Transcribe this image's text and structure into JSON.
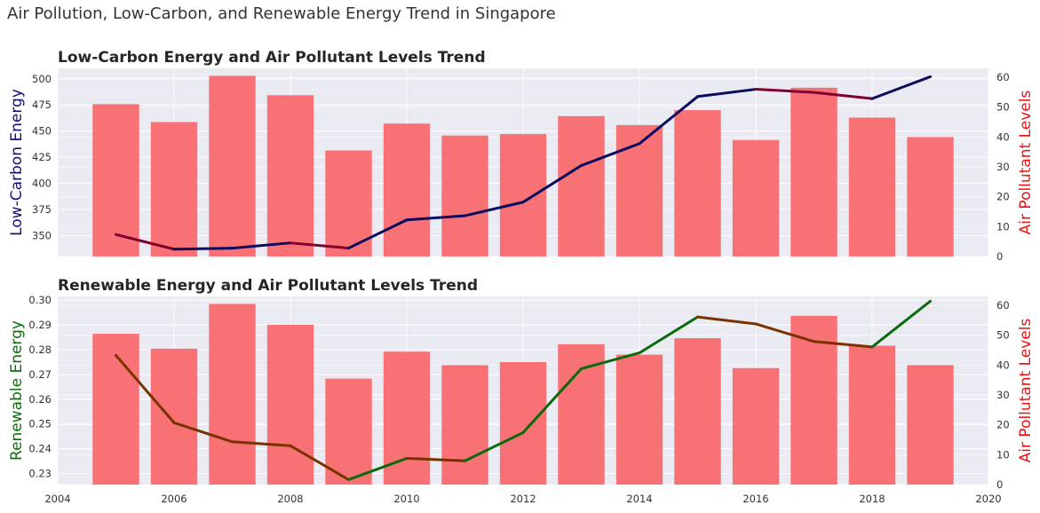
{
  "figure": {
    "title": "Air Pollution, Low-Carbon, and Renewable Energy Trend in Singapore",
    "colors": {
      "background": "#eaeaf2",
      "grid": "#ffffff",
      "bars": "#f87175",
      "right_axis_label": "#ee1111"
    }
  },
  "chart_data": [
    {
      "type": "bar+line",
      "title": "Low-Carbon Energy and Air Pollutant Levels Trend",
      "ylabel": "Low-Carbon Energy",
      "ylabel_color": "#101078",
      "y2label": "Air Pollutant Levels",
      "xlim": [
        2004,
        2020
      ],
      "ylim": [
        330,
        510
      ],
      "y2lim": [
        0,
        63
      ],
      "yticks": [
        350,
        375,
        400,
        425,
        450,
        475,
        500
      ],
      "y2ticks": [
        0,
        10,
        20,
        30,
        40,
        50,
        60
      ],
      "grid": true,
      "x": [
        2005,
        2006,
        2007,
        2008,
        2009,
        2010,
        2011,
        2012,
        2013,
        2014,
        2015,
        2016,
        2017,
        2018,
        2019
      ],
      "line_series": {
        "values": [
          351,
          337,
          338,
          343,
          338,
          365,
          369,
          382,
          417,
          438,
          483,
          490,
          487,
          481,
          502
        ],
        "color_rising": "#0a0a60",
        "color_falling": "#800030"
      },
      "bar_series": {
        "values": [
          51,
          45,
          60.5,
          54,
          35.5,
          44.5,
          40.5,
          41,
          47,
          44,
          49,
          39,
          56.5,
          46.5,
          40
        ]
      }
    },
    {
      "type": "bar+line",
      "title": "Renewable Energy and Air Pollutant Levels Trend",
      "ylabel": "Renewable Energy",
      "ylabel_color": "#0e6e0e",
      "y2label": "Air Pollutant Levels",
      "xlim": [
        2004,
        2020
      ],
      "ylim": [
        0.2255,
        0.3015
      ],
      "y2lim": [
        0,
        63
      ],
      "yticks": [
        0.23,
        0.24,
        0.25,
        0.26,
        0.27,
        0.28,
        0.29,
        0.3
      ],
      "ytick_labels": [
        "0.23",
        "0.24",
        "0.25",
        "0.26",
        "0.27",
        "0.28",
        "0.29",
        "0.30"
      ],
      "y2ticks": [
        0,
        10,
        20,
        30,
        40,
        50,
        60
      ],
      "xticks": [
        2004,
        2006,
        2008,
        2010,
        2012,
        2014,
        2016,
        2018,
        2020
      ],
      "grid": true,
      "x": [
        2005,
        2006,
        2007,
        2008,
        2009,
        2010,
        2011,
        2012,
        2013,
        2014,
        2015,
        2016,
        2017,
        2018,
        2019
      ],
      "line_series": {
        "values": [
          0.2777,
          0.2505,
          0.2428,
          0.2412,
          0.2275,
          0.2361,
          0.2351,
          0.2465,
          0.2723,
          0.2787,
          0.2932,
          0.2904,
          0.2833,
          0.2811,
          0.2996
        ],
        "color_rising": "#0b6a0b",
        "color_falling": "#7a3300"
      },
      "bar_series": {
        "values": [
          50.5,
          45.5,
          60.5,
          53.5,
          35.5,
          44.5,
          40,
          41,
          47,
          43.5,
          49,
          39,
          56.5,
          46.5,
          40
        ]
      }
    }
  ]
}
